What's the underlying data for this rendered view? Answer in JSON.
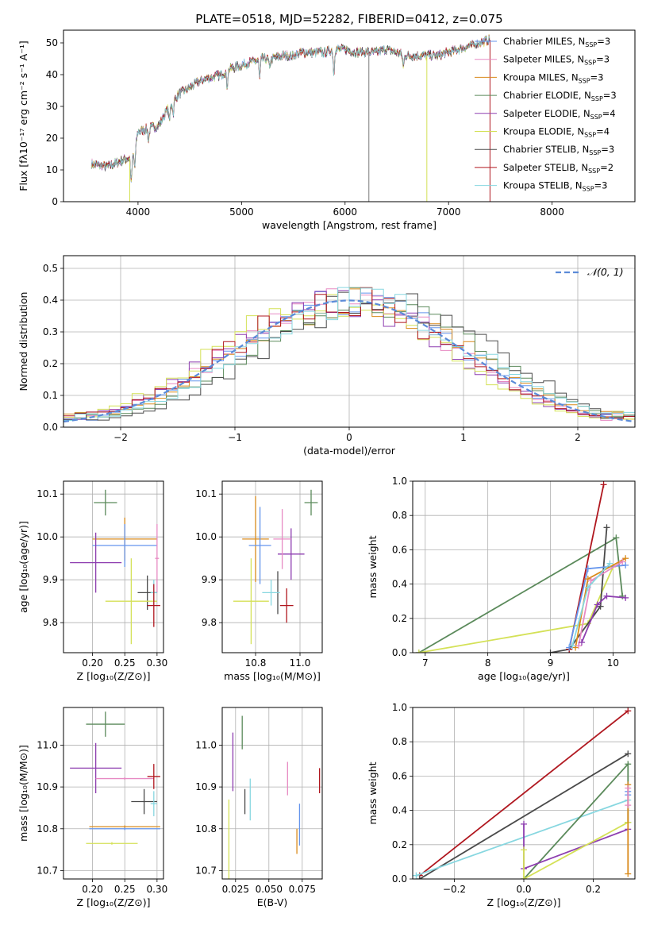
{
  "figure_title": "PLATE=0518, MJD=52282, FIBERID=0412, z=0.075",
  "legend_spectrum": [
    {
      "name": "Chabrier MILES, N_SSP=3",
      "base": "Chabrier MILES, N",
      "sub": "SSP",
      "tail": "=3",
      "color": "#6495ed"
    },
    {
      "name": "Salpeter MILES, N_SSP=3",
      "base": "Salpeter MILES, N",
      "sub": "SSP",
      "tail": "=3",
      "color": "#e78ac3"
    },
    {
      "name": "Kroupa MILES, N_SSP=3",
      "base": "Kroupa MILES, N",
      "sub": "SSP",
      "tail": "=3",
      "color": "#d98a1b"
    },
    {
      "name": "Chabrier ELODIE, N_SSP=3",
      "base": "Chabrier ELODIE, N",
      "sub": "SSP",
      "tail": "=3",
      "color": "#5b8a5b"
    },
    {
      "name": "Salpeter ELODIE, N_SSP=4",
      "base": "Salpeter ELODIE, N",
      "sub": "SSP",
      "tail": "=4",
      "color": "#8e3fb0"
    },
    {
      "name": "Kroupa ELODIE, N_SSP=4",
      "base": "Kroupa ELODIE, N",
      "sub": "SSP",
      "tail": "=4",
      "color": "#d4e157"
    },
    {
      "name": "Chabrier STELIB, N_SSP=3",
      "base": "Chabrier STELIB, N",
      "sub": "SSP",
      "tail": "=3",
      "color": "#4a4a4a"
    },
    {
      "name": "Salpeter STELIB, N_SSP=2",
      "base": "Salpeter STELIB, N",
      "sub": "SSP",
      "tail": "=2",
      "color": "#b0171f"
    },
    {
      "name": "Kroupa STELIB, N_SSP=3",
      "base": "Kroupa STELIB, N",
      "sub": "SSP",
      "tail": "=3",
      "color": "#87d7e0"
    }
  ],
  "chart_data": [
    {
      "type": "line",
      "title": "PLATE=0518, MJD=52282, FIBERID=0412, z=0.075",
      "xlabel": "wavelength [Angstrom, rest frame]",
      "ylabel": "Flux [fλ10⁻¹⁷ erg cm⁻² s⁻¹ A⁻¹]",
      "xlim": [
        3280,
        8800
      ],
      "ylim": [
        0,
        54
      ],
      "xticks": [
        4000,
        5000,
        6000,
        7000,
        8000
      ],
      "yticks": [
        0,
        10,
        20,
        30,
        40,
        50
      ],
      "continuum": {
        "x": [
          3550,
          3700,
          3850,
          3950,
          4000,
          4100,
          4200,
          4300,
          4400,
          4500,
          4600,
          4700,
          4800,
          4900,
          5000,
          5100,
          5200,
          5300,
          5400,
          5500,
          5600,
          5700,
          5800,
          5900,
          6000,
          6100,
          6200,
          6300,
          6400,
          6500,
          6600,
          6700,
          6800,
          6900,
          7000,
          7100,
          7200,
          7300,
          7400
        ],
        "y": [
          12,
          11,
          13,
          14,
          22,
          23,
          24,
          30,
          34,
          36,
          38,
          39,
          40,
          42,
          43,
          44,
          45,
          45,
          46,
          46,
          47,
          47,
          47,
          48,
          48,
          47,
          47,
          47,
          48,
          47,
          46,
          46,
          46,
          46,
          47,
          48,
          49,
          50,
          51
        ]
      },
      "absorption_lines": {
        "x": [
          3934,
          3969,
          4101,
          4304,
          4340,
          4861,
          5175,
          5270,
          5892,
          6563
        ],
        "depth": [
          8,
          6,
          4,
          5,
          4,
          5,
          6,
          3,
          8,
          4
        ]
      },
      "spikes": [
        {
          "x": 6230,
          "to": 0,
          "color": "#7a7a7a"
        },
        {
          "x": 6790,
          "to": 0,
          "color": "#d4e157"
        },
        {
          "x": 7400,
          "to": 0,
          "color": "#b0171f"
        },
        {
          "x": 3920,
          "to": 0,
          "color": "#d4e157"
        }
      ]
    },
    {
      "type": "histogram",
      "xlabel": "(data-model)/error",
      "ylabel": "Normed distribution",
      "xlim": [
        -2.5,
        2.5
      ],
      "ylim": [
        0,
        0.54
      ],
      "xticks": [
        -2,
        -1,
        0,
        1,
        2
      ],
      "yticks": [
        0.0,
        0.1,
        0.2,
        0.3,
        0.4,
        0.5
      ],
      "reference": {
        "name": "N(0,1)",
        "label": "𝒩(0, 1)",
        "color": "#5b8bd8"
      }
    },
    {
      "type": "errorbar",
      "xlabel": "Z [log₁₀(Z/Z⊙)]",
      "ylabel": "age  [log₁₀(age/yr)]",
      "xlim": [
        0.155,
        0.31
      ],
      "ylim": [
        9.73,
        10.13
      ],
      "xticks": [
        0.2,
        0.25,
        0.3
      ],
      "yticks": [
        9.8,
        9.9,
        10.0,
        10.1
      ],
      "points": [
        {
          "x": 0.22,
          "y": 10.08,
          "xerr": 0.018,
          "yerr": 0.03,
          "color": "#5b8a5b"
        },
        {
          "x": 0.25,
          "y": 9.995,
          "xerr": 0.05,
          "yerr": 0.05,
          "color": "#d98a1b"
        },
        {
          "x": 0.25,
          "y": 9.98,
          "xerr": 0.05,
          "yerr": 0.05,
          "color": "#6495ed"
        },
        {
          "x": 0.205,
          "y": 9.94,
          "xerr": 0.04,
          "yerr": 0.07,
          "color": "#8e3fb0"
        },
        {
          "x": 0.3,
          "y": 9.95,
          "xerr": 0.003,
          "yerr": 0.08,
          "color": "#e78ac3"
        },
        {
          "x": 0.285,
          "y": 9.87,
          "xerr": 0.015,
          "yerr": 0.04,
          "color": "#4a4a4a"
        },
        {
          "x": 0.295,
          "y": 9.87,
          "xerr": 0.005,
          "yerr": 0.03,
          "color": "#87d7e0"
        },
        {
          "x": 0.26,
          "y": 9.85,
          "xerr": 0.04,
          "yerr": 0.1,
          "color": "#d4e157"
        },
        {
          "x": 0.295,
          "y": 9.84,
          "xerr": 0.01,
          "yerr": 0.05,
          "color": "#b0171f"
        }
      ]
    },
    {
      "type": "errorbar",
      "xlabel": "mass [log₁₀(M/M⊙)]",
      "ylabel": "",
      "xlim": [
        10.65,
        11.1
      ],
      "ylim": [
        9.73,
        10.13
      ],
      "xticks": [
        10.8,
        11.0
      ],
      "yticks": [
        9.8,
        9.9,
        10.0,
        10.1
      ],
      "points": [
        {
          "x": 11.05,
          "y": 10.08,
          "xerr": 0.03,
          "yerr": 0.03,
          "color": "#5b8a5b"
        },
        {
          "x": 10.8,
          "y": 9.995,
          "xerr": 0.06,
          "yerr": 0.1,
          "color": "#d98a1b"
        },
        {
          "x": 10.82,
          "y": 9.98,
          "xerr": 0.05,
          "yerr": 0.09,
          "color": "#6495ed"
        },
        {
          "x": 10.96,
          "y": 9.96,
          "xerr": 0.06,
          "yerr": 0.06,
          "color": "#8e3fb0"
        },
        {
          "x": 10.92,
          "y": 9.995,
          "xerr": 0.04,
          "yerr": 0.07,
          "color": "#e78ac3"
        },
        {
          "x": 10.9,
          "y": 9.87,
          "xerr": 0.002,
          "yerr": 0.05,
          "color": "#4a4a4a"
        },
        {
          "x": 10.87,
          "y": 9.87,
          "xerr": 0.04,
          "yerr": 0.03,
          "color": "#87d7e0"
        },
        {
          "x": 10.78,
          "y": 9.85,
          "xerr": 0.08,
          "yerr": 0.1,
          "color": "#d4e157"
        },
        {
          "x": 10.94,
          "y": 9.84,
          "xerr": 0.03,
          "yerr": 0.04,
          "color": "#b0171f"
        }
      ]
    },
    {
      "type": "line",
      "xlabel": "age  [log₁₀(age/yr)]",
      "ylabel": "mass weight",
      "xlim": [
        6.8,
        10.35
      ],
      "ylim": [
        0,
        1.0
      ],
      "xticks": [
        7,
        8,
        9,
        10
      ],
      "yticks": [
        0.0,
        0.2,
        0.4,
        0.6,
        0.8,
        1.0
      ],
      "series": [
        {
          "color": "#5b8a5b",
          "x": [
            6.9,
            10.05,
            10.15
          ],
          "y": [
            0.0,
            0.67,
            0.33
          ]
        },
        {
          "color": "#d4e157",
          "x": [
            6.9,
            9.6,
            10.0
          ],
          "y": [
            0.0,
            0.17,
            0.5
          ]
        },
        {
          "color": "#4a4a4a",
          "x": [
            9.0,
            9.3,
            9.8,
            9.9
          ],
          "y": [
            0.0,
            0.02,
            0.27,
            0.73
          ]
        },
        {
          "color": "#b0171f",
          "x": [
            9.3,
            9.85
          ],
          "y": [
            0.02,
            0.98
          ]
        },
        {
          "color": "#6495ed",
          "x": [
            9.3,
            9.6,
            10.2
          ],
          "y": [
            0.03,
            0.49,
            0.51
          ]
        },
        {
          "color": "#d98a1b",
          "x": [
            9.4,
            9.6,
            10.2
          ],
          "y": [
            0.03,
            0.43,
            0.55
          ]
        },
        {
          "color": "#e78ac3",
          "x": [
            9.45,
            9.65,
            10.15
          ],
          "y": [
            0.04,
            0.42,
            0.53
          ]
        },
        {
          "color": "#8e3fb0",
          "x": [
            9.5,
            9.75,
            9.9,
            10.2
          ],
          "y": [
            0.06,
            0.28,
            0.33,
            0.32
          ]
        },
        {
          "color": "#87d7e0",
          "x": [
            9.35,
            9.6,
            9.95
          ],
          "y": [
            0.04,
            0.38,
            0.52
          ]
        }
      ]
    },
    {
      "type": "errorbar",
      "xlabel": "Z [log₁₀(Z/Z⊙)]",
      "ylabel": "mass [log₁₀(M/M⊙)]",
      "xlim": [
        0.155,
        0.31
      ],
      "ylim": [
        10.68,
        11.09
      ],
      "xticks": [
        0.2,
        0.25,
        0.3
      ],
      "yticks": [
        10.7,
        10.8,
        10.9,
        11.0
      ],
      "points": [
        {
          "x": 0.22,
          "y": 11.05,
          "xerr": 0.03,
          "yerr": 0.03,
          "color": "#5b8a5b"
        },
        {
          "x": 0.205,
          "y": 10.945,
          "xerr": 0.04,
          "yerr": 0.06,
          "color": "#8e3fb0"
        },
        {
          "x": 0.25,
          "y": 10.92,
          "xerr": 0.045,
          "yerr": 0.003,
          "color": "#e78ac3"
        },
        {
          "x": 0.295,
          "y": 10.925,
          "xerr": 0.01,
          "yerr": 0.03,
          "color": "#b0171f"
        },
        {
          "x": 0.28,
          "y": 10.865,
          "xerr": 0.02,
          "yerr": 0.03,
          "color": "#4a4a4a"
        },
        {
          "x": 0.295,
          "y": 10.86,
          "xerr": 0.005,
          "yerr": 0.03,
          "color": "#87d7e0"
        },
        {
          "x": 0.25,
          "y": 10.805,
          "xerr": 0.055,
          "yerr": 0.003,
          "color": "#d98a1b"
        },
        {
          "x": 0.25,
          "y": 10.8,
          "xerr": 0.055,
          "yerr": 0.003,
          "color": "#6495ed"
        },
        {
          "x": 0.23,
          "y": 10.765,
          "xerr": 0.04,
          "yerr": 0.003,
          "color": "#d4e157"
        }
      ]
    },
    {
      "type": "errorbar",
      "xlabel": "E(B-V)",
      "ylabel": "",
      "xlim": [
        0.015,
        0.09
      ],
      "ylim": [
        10.68,
        11.09
      ],
      "xticks": [
        0.025,
        0.05,
        0.075
      ],
      "yticks": [
        10.7,
        10.8,
        10.9,
        11.0
      ],
      "points": [
        {
          "x": 0.03,
          "y": 11.03,
          "xerr": 0.0,
          "yerr": 0.04,
          "color": "#5b8a5b"
        },
        {
          "x": 0.023,
          "y": 10.96,
          "xerr": 0.0,
          "yerr": 0.07,
          "color": "#8e3fb0"
        },
        {
          "x": 0.064,
          "y": 10.92,
          "xerr": 0.0,
          "yerr": 0.04,
          "color": "#e78ac3"
        },
        {
          "x": 0.088,
          "y": 10.915,
          "xerr": 0.0,
          "yerr": 0.03,
          "color": "#b0171f"
        },
        {
          "x": 0.032,
          "y": 10.865,
          "xerr": 0.0,
          "yerr": 0.03,
          "color": "#4a4a4a"
        },
        {
          "x": 0.036,
          "y": 10.87,
          "xerr": 0.0,
          "yerr": 0.05,
          "color": "#87d7e0"
        },
        {
          "x": 0.071,
          "y": 10.77,
          "xerr": 0.0,
          "yerr": 0.03,
          "color": "#d98a1b"
        },
        {
          "x": 0.073,
          "y": 10.81,
          "xerr": 0.0,
          "yerr": 0.05,
          "color": "#6495ed"
        },
        {
          "x": 0.02,
          "y": 10.77,
          "xerr": 0.0,
          "yerr": 0.1,
          "color": "#d4e157"
        }
      ]
    },
    {
      "type": "line",
      "xlabel": "Z [log₁₀(Z/Z⊙)]",
      "ylabel": "mass weight",
      "xlim": [
        -0.32,
        0.32
      ],
      "ylim": [
        0,
        1.0
      ],
      "xticks": [
        -0.2,
        0.0,
        0.2
      ],
      "yticks": [
        0.0,
        0.2,
        0.4,
        0.6,
        0.8,
        1.0
      ],
      "series": [
        {
          "color": "#b0171f",
          "x": [
            -0.3,
            0.3
          ],
          "y": [
            0.02,
            0.98
          ]
        },
        {
          "color": "#4a4a4a",
          "x": [
            -0.3,
            0.3
          ],
          "y": [
            0.0,
            0.73
          ]
        },
        {
          "color": "#87d7e0",
          "x": [
            -0.31,
            0.3
          ],
          "y": [
            0.02,
            0.46
          ]
        },
        {
          "color": "#5b8a5b",
          "x": [
            0.0,
            0.3,
            0.3
          ],
          "y": [
            0.0,
            0.67,
            0.33
          ]
        },
        {
          "color": "#8e3fb0",
          "x": [
            0.0,
            0.0,
            0.3
          ],
          "y": [
            0.32,
            0.06,
            0.29
          ]
        },
        {
          "color": "#d4e157",
          "x": [
            0.0,
            0.0,
            0.3
          ],
          "y": [
            0.17,
            0.0,
            0.33
          ]
        },
        {
          "color": "#d98a1b",
          "x": [
            0.3,
            0.3
          ],
          "y": [
            0.03,
            0.55
          ]
        },
        {
          "color": "#6495ed",
          "x": [
            0.3,
            0.3
          ],
          "y": [
            0.49,
            0.51
          ]
        },
        {
          "color": "#e78ac3",
          "x": [
            0.3,
            0.3
          ],
          "y": [
            0.43,
            0.53
          ]
        }
      ]
    }
  ]
}
